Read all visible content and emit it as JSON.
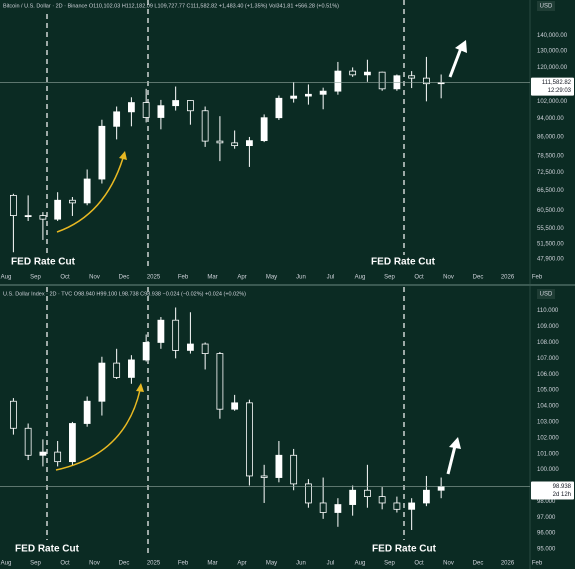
{
  "chart_data": [
    {
      "type": "candlestick",
      "title": "Bitcoin / U.S. Dollar · 2D · Binance  O110,102.03 H112,182.09 L109,727.77 C111,582.82 +1,483.40 (+1.35%)  Vol341.81 +566.28 (+0.51%)",
      "currency": "USD",
      "log_scale": true,
      "up_color": "#ffffff",
      "down_color": "#0b2b23",
      "wick_color": "#ffffff",
      "categories": [
        "Aug",
        null,
        "Sep",
        null,
        "Oct",
        null,
        "Nov",
        null,
        "Dec",
        null,
        "2025",
        null,
        "Feb",
        null,
        "Mar",
        null,
        "Apr",
        null,
        "May",
        null,
        "Jun",
        null,
        "Jul",
        null,
        "Aug",
        null,
        "Sep",
        null,
        "Oct",
        null,
        "Nov",
        null,
        "Dec",
        null,
        "2026",
        null,
        "Feb"
      ],
      "open": [
        65000,
        59000,
        59000,
        58000,
        63500,
        62700,
        70300,
        90500,
        97000,
        101400,
        94400,
        99900,
        102400,
        97500,
        84300,
        83600,
        82500,
        84500,
        94300,
        103500,
        104600,
        105500,
        107100,
        117900,
        115800,
        117300,
        108300,
        115300,
        114000,
        111000,
        null,
        null,
        null,
        null,
        null,
        null,
        null
      ],
      "high": [
        65500,
        65000,
        60000,
        66000,
        64500,
        73600,
        93400,
        99500,
        104000,
        108300,
        102700,
        109500,
        102500,
        99500,
        95000,
        88700,
        86000,
        95800,
        104900,
        111900,
        110600,
        108900,
        123200,
        120000,
        124500,
        117600,
        116000,
        117900,
        126200,
        116000,
        null,
        null,
        null,
        null,
        null,
        null,
        null
      ],
      "low": [
        49500,
        57500,
        52500,
        57500,
        58900,
        62000,
        68800,
        85000,
        90500,
        92200,
        89200,
        97600,
        91200,
        82000,
        76600,
        81300,
        74500,
        83900,
        93300,
        101400,
        100400,
        98200,
        105300,
        114700,
        112000,
        107300,
        107300,
        108700,
        102000,
        103500,
        null,
        null,
        null,
        null,
        null,
        null,
        null
      ],
      "close": [
        59000,
        59000,
        58000,
        63500,
        62700,
        70300,
        90500,
        97000,
        101400,
        94400,
        99900,
        102400,
        97500,
        84300,
        83600,
        82500,
        84500,
        94300,
        103500,
        104600,
        105500,
        107100,
        117900,
        115800,
        117300,
        108300,
        115300,
        114000,
        111000,
        111582.82,
        null,
        null,
        null,
        null,
        null,
        null,
        null
      ],
      "ylim": [
        45900,
        155000
      ],
      "yticks": [
        {
          "value": 140000,
          "label": "140,000.00"
        },
        {
          "value": 130000,
          "label": "130,000.00"
        },
        {
          "value": 120000,
          "label": "120,000.00"
        },
        {
          "value": 102000,
          "label": "102,000.00"
        },
        {
          "value": 94000,
          "label": "94,000.00"
        },
        {
          "value": 86000,
          "label": "86,000.00"
        },
        {
          "value": 78500,
          "label": "78,500.00"
        },
        {
          "value": 72500,
          "label": "72,500.00"
        },
        {
          "value": 66500,
          "label": "66,500.00"
        },
        {
          "value": 60500,
          "label": "60,500.00"
        },
        {
          "value": 55500,
          "label": "55,500.00"
        },
        {
          "value": 51500,
          "label": "51,500.00"
        },
        {
          "value": 47900,
          "label": "47,900.00"
        }
      ],
      "last_price": {
        "value": 111582.82,
        "label": "111,582.82"
      },
      "countdown": "12:29:03",
      "annotations": [
        "FED Rate Cut",
        "FED Rate Cut"
      ]
    },
    {
      "type": "candlestick",
      "title": "U.S. Dollar Index · 2D · TVC  O98.940 H99.100 L98.738 C98.938 −0.024 (−0.02%)  +0.024 (+0.02%)",
      "currency": "USD",
      "log_scale": false,
      "up_color": "#ffffff",
      "down_color": "#0b2b23",
      "wick_color": "#ffffff",
      "categories": [
        "Aug",
        null,
        "Sep",
        null,
        "Oct",
        null,
        "Nov",
        null,
        "Dec",
        null,
        "2025",
        null,
        "Feb",
        null,
        "Mar",
        null,
        "Apr",
        null,
        "May",
        null,
        "Jun",
        null,
        "Jul",
        null,
        "Aug",
        null,
        "Sep",
        null,
        "Oct",
        null,
        "Nov",
        null,
        "Dec",
        null,
        "2026",
        null,
        "Feb"
      ],
      "open": [
        104.3,
        102.6,
        100.9,
        101.1,
        100.5,
        102.9,
        104.3,
        106.7,
        105.8,
        106.9,
        108.0,
        109.4,
        107.5,
        107.9,
        107.3,
        103.8,
        104.2,
        99.6,
        99.5,
        100.9,
        99.1,
        97.9,
        97.3,
        97.8,
        98.7,
        98.3,
        97.9,
        97.5,
        97.9,
        98.7,
        null,
        null,
        null,
        null,
        null,
        null,
        null
      ],
      "high": [
        104.5,
        102.9,
        101.9,
        101.8,
        103.0,
        104.6,
        107.1,
        107.6,
        107.2,
        108.5,
        109.6,
        110.2,
        109.9,
        108.0,
        107.4,
        104.7,
        104.4,
        100.3,
        101.8,
        101.3,
        99.4,
        99.5,
        98.2,
        99.0,
        100.3,
        98.9,
        98.3,
        98.2,
        99.6,
        99.5,
        null,
        null,
        null,
        null,
        null,
        null,
        null
      ],
      "low": [
        102.2,
        100.6,
        100.2,
        100.2,
        100.3,
        102.7,
        103.4,
        105.7,
        105.4,
        106.8,
        107.6,
        107.0,
        107.3,
        106.3,
        103.2,
        103.7,
        99.0,
        97.9,
        99.2,
        98.7,
        97.6,
        96.9,
        96.4,
        97.1,
        97.6,
        97.5,
        97.3,
        96.2,
        97.7,
        98.2,
        null,
        null,
        null,
        null,
        null,
        null,
        null
      ],
      "close": [
        102.6,
        100.9,
        101.1,
        100.5,
        102.9,
        104.3,
        106.7,
        105.8,
        106.9,
        108.0,
        109.4,
        107.5,
        107.9,
        107.3,
        103.8,
        104.2,
        99.6,
        99.5,
        100.9,
        99.1,
        97.9,
        97.3,
        97.8,
        98.7,
        98.3,
        97.9,
        97.5,
        97.9,
        98.7,
        98.938,
        null,
        null,
        null,
        null,
        null,
        null,
        null
      ],
      "ylim": [
        94.5,
        111.3
      ],
      "yticks": [
        {
          "value": 110,
          "label": "110.000"
        },
        {
          "value": 109,
          "label": "109.000"
        },
        {
          "value": 108,
          "label": "108.000"
        },
        {
          "value": 107,
          "label": "107.000"
        },
        {
          "value": 106,
          "label": "106.000"
        },
        {
          "value": 105,
          "label": "105.000"
        },
        {
          "value": 104,
          "label": "104.000"
        },
        {
          "value": 103,
          "label": "103.000"
        },
        {
          "value": 102,
          "label": "102.000"
        },
        {
          "value": 101,
          "label": "101.000"
        },
        {
          "value": 100,
          "label": "100.000"
        },
        {
          "value": 98,
          "label": "98.000"
        },
        {
          "value": 97,
          "label": "97.000"
        },
        {
          "value": 96,
          "label": "96.000"
        },
        {
          "value": 95,
          "label": "95.000"
        }
      ],
      "last_price": {
        "value": 98.938,
        "label": "98.938"
      },
      "countdown": "2d 12h",
      "annotations": [
        "FED Rate Cut",
        "FED Rate Cut"
      ]
    }
  ]
}
